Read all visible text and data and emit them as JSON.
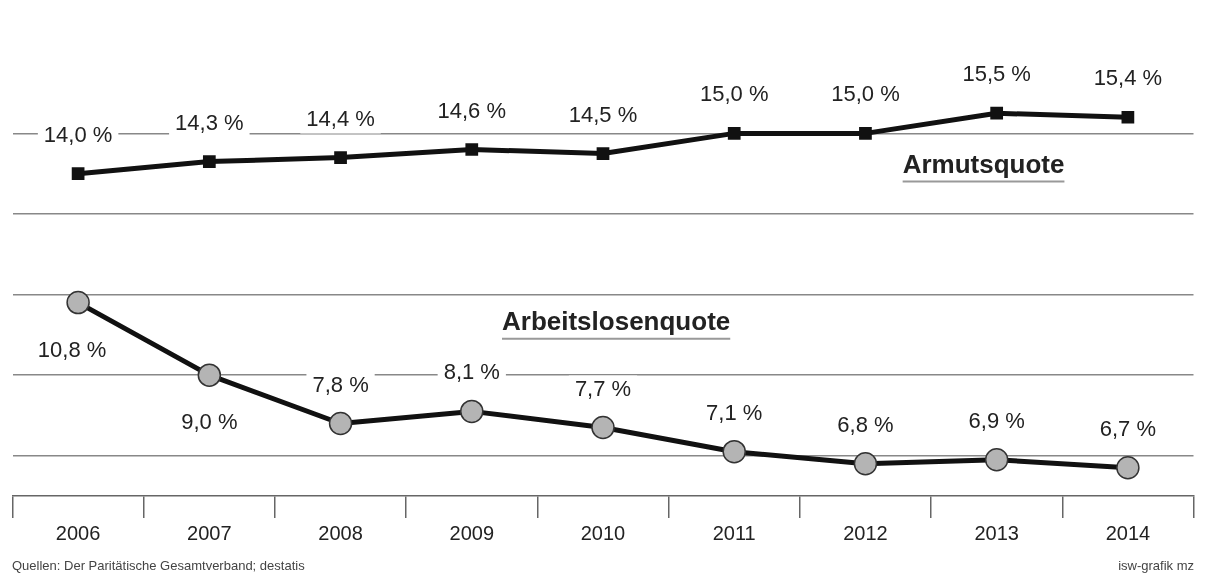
{
  "chart_data": {
    "type": "line",
    "categories": [
      "2006",
      "2007",
      "2008",
      "2009",
      "2010",
      "2011",
      "2012",
      "2013",
      "2014"
    ],
    "series": [
      {
        "name": "Armutsquote",
        "color": "#111111",
        "marker": "square",
        "values": [
          14.0,
          14.3,
          14.4,
          14.6,
          14.5,
          15.0,
          15.0,
          15.5,
          15.4
        ],
        "value_labels": [
          "14,0 %",
          "14,3 %",
          "14,4 %",
          "14,6 %",
          "14,5 %",
          "15,0 %",
          "15,0 %",
          "15,5 %",
          "15,4 %"
        ]
      },
      {
        "name": "Arbeitslosenquote",
        "color": "#b4b4b4",
        "marker": "circle",
        "values": [
          10.8,
          9.0,
          7.8,
          8.1,
          7.7,
          7.1,
          6.8,
          6.9,
          6.7
        ],
        "value_labels": [
          "10,8 %",
          "9,0 %",
          "7,8 %",
          "8,1 %",
          "7,7 %",
          "7,1 %",
          "6,8 %",
          "6,9 %",
          "6,7 %"
        ]
      }
    ],
    "yticks": [
      {
        "value": 7,
        "label": null
      },
      {
        "value": 9,
        "label": null
      },
      {
        "value": 11,
        "label": null
      },
      {
        "value": 13,
        "label": null
      },
      {
        "value": 15,
        "label": null
      }
    ],
    "grid": "y",
    "legend": false,
    "tick_labels": "x",
    "line_style": "solid",
    "annotations": [
      "Quellen: Der Paritätische Gesamtverband; destatis",
      "isw-grafik mz"
    ]
  }
}
